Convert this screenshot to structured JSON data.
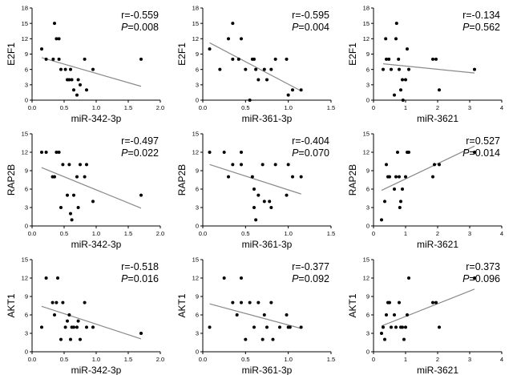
{
  "chart_data": [
    {
      "type": "scatter",
      "ylabel": "E2F1",
      "xlabel": "miR-342-3p",
      "xlim": [
        0,
        2.0
      ],
      "xticks": [
        "0.0",
        "0.5",
        "1.0",
        "1.5",
        "2.0"
      ],
      "xtick_values": [
        0,
        0.5,
        1,
        1.5,
        2
      ],
      "ylim": [
        0,
        18
      ],
      "yticks": [
        "0",
        "3",
        "6",
        "9",
        "12",
        "15",
        "18"
      ],
      "ytick_values": [
        0,
        3,
        6,
        9,
        12,
        15,
        18
      ],
      "r_text": "r=-0.559",
      "p_label": "P",
      "p_value": "=0.008",
      "points": [
        [
          0.15,
          10
        ],
        [
          0.22,
          8
        ],
        [
          0.33,
          8
        ],
        [
          0.35,
          15
        ],
        [
          0.38,
          12
        ],
        [
          0.42,
          12
        ],
        [
          0.42,
          8
        ],
        [
          0.45,
          6
        ],
        [
          0.52,
          6
        ],
        [
          0.55,
          4
        ],
        [
          0.58,
          4
        ],
        [
          0.6,
          6
        ],
        [
          0.62,
          4
        ],
        [
          0.65,
          2
        ],
        [
          0.7,
          1
        ],
        [
          0.72,
          4
        ],
        [
          0.75,
          3
        ],
        [
          0.82,
          8
        ],
        [
          0.85,
          2
        ],
        [
          0.95,
          6
        ],
        [
          1.7,
          8
        ]
      ],
      "fit": [
        [
          0.15,
          8.3
        ],
        [
          1.7,
          2.7
        ]
      ]
    },
    {
      "type": "scatter",
      "ylabel": "E2F1",
      "xlabel": "miR-361-3p",
      "xlim": [
        0,
        1.5
      ],
      "xticks": [
        "0.0",
        "0.5",
        "1.0",
        "1.5"
      ],
      "xtick_values": [
        0,
        0.5,
        1,
        1.5
      ],
      "ylim": [
        0,
        18
      ],
      "yticks": [
        "0",
        "3",
        "6",
        "9",
        "12",
        "15",
        "18"
      ],
      "ytick_values": [
        0,
        3,
        6,
        9,
        12,
        15,
        18
      ],
      "r_text": "r=-0.595",
      "p_label": "P",
      "p_value": "=0.004",
      "points": [
        [
          0.08,
          10
        ],
        [
          0.2,
          6
        ],
        [
          0.3,
          12
        ],
        [
          0.35,
          15
        ],
        [
          0.35,
          8
        ],
        [
          0.42,
          8
        ],
        [
          0.45,
          12
        ],
        [
          0.5,
          6
        ],
        [
          0.55,
          0
        ],
        [
          0.58,
          8
        ],
        [
          0.6,
          8
        ],
        [
          0.62,
          6
        ],
        [
          0.65,
          4
        ],
        [
          0.72,
          6
        ],
        [
          0.75,
          4
        ],
        [
          0.8,
          6
        ],
        [
          0.85,
          8
        ],
        [
          0.98,
          8
        ],
        [
          1.0,
          1
        ],
        [
          1.05,
          2
        ],
        [
          1.15,
          2
        ]
      ],
      "fit": [
        [
          0.08,
          11.2
        ],
        [
          1.15,
          1.8
        ]
      ]
    },
    {
      "type": "scatter",
      "ylabel": "E2F1",
      "xlabel": "miR-3621",
      "xlim": [
        0,
        4
      ],
      "xticks": [
        "0",
        "1",
        "2",
        "3",
        "4"
      ],
      "xtick_values": [
        0,
        1,
        2,
        3,
        4
      ],
      "ylim": [
        0,
        18
      ],
      "yticks": [
        "0",
        "3",
        "6",
        "9",
        "12",
        "15",
        "18"
      ],
      "ytick_values": [
        0,
        3,
        6,
        9,
        12,
        15,
        18
      ],
      "r_text": "r=-0.134",
      "p_label": "P",
      "p_value": "=0.562",
      "points": [
        [
          0.3,
          6
        ],
        [
          0.38,
          12
        ],
        [
          0.4,
          8
        ],
        [
          0.48,
          8
        ],
        [
          0.55,
          6
        ],
        [
          0.65,
          1
        ],
        [
          0.7,
          12
        ],
        [
          0.72,
          15
        ],
        [
          0.78,
          8
        ],
        [
          0.8,
          6
        ],
        [
          0.85,
          2
        ],
        [
          0.9,
          4
        ],
        [
          0.92,
          0
        ],
        [
          1.0,
          4
        ],
        [
          1.05,
          10
        ],
        [
          1.1,
          6
        ],
        [
          1.85,
          8
        ],
        [
          1.95,
          8
        ],
        [
          2.05,
          2
        ],
        [
          3.15,
          6
        ]
      ],
      "fit": [
        [
          0.3,
          7.1
        ],
        [
          3.15,
          5.3
        ]
      ]
    },
    {
      "type": "scatter",
      "ylabel": "RAP2B",
      "xlabel": "miR-342-3p",
      "xlim": [
        0,
        2.0
      ],
      "xticks": [
        "0.0",
        "0.5",
        "1.0",
        "1.5",
        "2.0"
      ],
      "xtick_values": [
        0,
        0.5,
        1,
        1.5,
        2
      ],
      "ylim": [
        0,
        15
      ],
      "yticks": [
        "0",
        "3",
        "6",
        "9",
        "12",
        "15"
      ],
      "ytick_values": [
        0,
        3,
        6,
        9,
        12,
        15
      ],
      "r_text": "r=-0.497",
      "p_label": "P",
      "p_value": "=0.022",
      "points": [
        [
          0.15,
          12
        ],
        [
          0.22,
          12
        ],
        [
          0.32,
          8
        ],
        [
          0.35,
          8
        ],
        [
          0.38,
          12
        ],
        [
          0.42,
          12
        ],
        [
          0.45,
          3
        ],
        [
          0.48,
          10
        ],
        [
          0.55,
          5
        ],
        [
          0.58,
          10
        ],
        [
          0.6,
          2
        ],
        [
          0.62,
          1
        ],
        [
          0.65,
          5
        ],
        [
          0.7,
          8
        ],
        [
          0.72,
          3
        ],
        [
          0.75,
          10
        ],
        [
          0.82,
          8
        ],
        [
          0.85,
          10
        ],
        [
          0.95,
          4
        ],
        [
          1.7,
          5
        ]
      ],
      "fit": [
        [
          0.15,
          9.5
        ],
        [
          1.7,
          2.9
        ]
      ]
    },
    {
      "type": "scatter",
      "ylabel": "RAP2B",
      "xlabel": "miR-361-3p",
      "xlim": [
        0,
        1.5
      ],
      "xticks": [
        "0.0",
        "0.5",
        "1.0",
        "1.5"
      ],
      "xtick_values": [
        0,
        0.5,
        1,
        1.5
      ],
      "ylim": [
        0,
        15
      ],
      "yticks": [
        "0",
        "3",
        "6",
        "9",
        "12",
        "15"
      ],
      "ytick_values": [
        0,
        3,
        6,
        9,
        12,
        15
      ],
      "r_text": "r=-0.404",
      "p_label": "P",
      "p_value": "=0.070",
      "points": [
        [
          0.08,
          12
        ],
        [
          0.25,
          12
        ],
        [
          0.3,
          8
        ],
        [
          0.35,
          10
        ],
        [
          0.45,
          10
        ],
        [
          0.45,
          12
        ],
        [
          0.58,
          8
        ],
        [
          0.6,
          6
        ],
        [
          0.6,
          3
        ],
        [
          0.62,
          1
        ],
        [
          0.65,
          5
        ],
        [
          0.7,
          10
        ],
        [
          0.72,
          4
        ],
        [
          0.78,
          4
        ],
        [
          0.8,
          3
        ],
        [
          0.85,
          10
        ],
        [
          0.98,
          5
        ],
        [
          1.0,
          10
        ],
        [
          1.05,
          8
        ],
        [
          1.15,
          8
        ]
      ],
      "fit": [
        [
          0.08,
          10.0
        ],
        [
          1.15,
          5.2
        ]
      ]
    },
    {
      "type": "scatter",
      "ylabel": "RAP2B",
      "xlabel": "miR-3621",
      "xlim": [
        0,
        4
      ],
      "xticks": [
        "0",
        "1",
        "2",
        "3",
        "4"
      ],
      "xtick_values": [
        0,
        1,
        2,
        3,
        4
      ],
      "ylim": [
        0,
        15
      ],
      "yticks": [
        "0",
        "3",
        "6",
        "9",
        "12",
        "15"
      ],
      "ytick_values": [
        0,
        3,
        6,
        9,
        12,
        15
      ],
      "r_text": "r=0.527",
      "p_label": "P",
      "p_value": "=0.014",
      "points": [
        [
          0.25,
          1
        ],
        [
          0.35,
          4
        ],
        [
          0.4,
          10
        ],
        [
          0.45,
          8
        ],
        [
          0.5,
          8
        ],
        [
          0.65,
          6
        ],
        [
          0.7,
          8
        ],
        [
          0.75,
          12
        ],
        [
          0.8,
          8
        ],
        [
          0.82,
          3
        ],
        [
          0.85,
          4
        ],
        [
          0.9,
          6
        ],
        [
          1.0,
          8
        ],
        [
          1.05,
          12
        ],
        [
          1.1,
          12
        ],
        [
          1.85,
          8
        ],
        [
          1.9,
          10
        ],
        [
          2.05,
          10
        ],
        [
          3.15,
          12
        ]
      ],
      "fit": [
        [
          0.25,
          5.8
        ],
        [
          3.15,
          13.0
        ]
      ]
    },
    {
      "type": "scatter",
      "ylabel": "AKT1",
      "xlabel": "miR-342-3p",
      "xlim": [
        0,
        2.0
      ],
      "xticks": [
        "0.0",
        "0.5",
        "1.0",
        "1.5",
        "2.0"
      ],
      "xtick_values": [
        0,
        0.5,
        1,
        1.5,
        2
      ],
      "ylim": [
        0,
        15
      ],
      "yticks": [
        "0",
        "3",
        "6",
        "9",
        "12",
        "15"
      ],
      "ytick_values": [
        0,
        3,
        6,
        9,
        12,
        15
      ],
      "r_text": "r=-0.518",
      "p_label": "P",
      "p_value": "=0.016",
      "points": [
        [
          0.15,
          4
        ],
        [
          0.22,
          12
        ],
        [
          0.32,
          8
        ],
        [
          0.35,
          6
        ],
        [
          0.38,
          8
        ],
        [
          0.4,
          12
        ],
        [
          0.45,
          2
        ],
        [
          0.48,
          8
        ],
        [
          0.52,
          4
        ],
        [
          0.55,
          5
        ],
        [
          0.58,
          6
        ],
        [
          0.6,
          2
        ],
        [
          0.62,
          4
        ],
        [
          0.65,
          4
        ],
        [
          0.7,
          4
        ],
        [
          0.72,
          5
        ],
        [
          0.75,
          2
        ],
        [
          0.82,
          8
        ],
        [
          0.85,
          4
        ],
        [
          0.95,
          4
        ],
        [
          1.7,
          3
        ]
      ],
      "fit": [
        [
          0.15,
          7.4
        ],
        [
          1.7,
          2.1
        ]
      ]
    },
    {
      "type": "scatter",
      "ylabel": "AKT1",
      "xlabel": "miR-361-3p",
      "xlim": [
        0,
        1.5
      ],
      "xticks": [
        "0.0",
        "0.5",
        "1.0",
        "1.5"
      ],
      "xtick_values": [
        0,
        0.5,
        1,
        1.5
      ],
      "ylim": [
        0,
        15
      ],
      "yticks": [
        "0",
        "3",
        "6",
        "9",
        "12",
        "15"
      ],
      "ytick_values": [
        0,
        3,
        6,
        9,
        12,
        15
      ],
      "r_text": "r=-0.377",
      "p_label": "P",
      "p_value": "=0.092",
      "points": [
        [
          0.08,
          4
        ],
        [
          0.25,
          12
        ],
        [
          0.35,
          8
        ],
        [
          0.4,
          6
        ],
        [
          0.45,
          12
        ],
        [
          0.45,
          8
        ],
        [
          0.5,
          2
        ],
        [
          0.55,
          8
        ],
        [
          0.6,
          4
        ],
        [
          0.65,
          8
        ],
        [
          0.7,
          2
        ],
        [
          0.72,
          6
        ],
        [
          0.75,
          4
        ],
        [
          0.8,
          8
        ],
        [
          0.82,
          2
        ],
        [
          0.9,
          4
        ],
        [
          0.98,
          6
        ],
        [
          1.0,
          4
        ],
        [
          1.02,
          4
        ],
        [
          1.15,
          4
        ]
      ],
      "fit": [
        [
          0.08,
          7.8
        ],
        [
          1.15,
          3.8
        ]
      ]
    },
    {
      "type": "scatter",
      "ylabel": "AKT1",
      "xlabel": "miR-3621",
      "xlim": [
        0,
        4
      ],
      "xticks": [
        "0",
        "1",
        "2",
        "3",
        "4"
      ],
      "xtick_values": [
        0,
        1,
        2,
        3,
        4
      ],
      "ylim": [
        0,
        15
      ],
      "yticks": [
        "0",
        "3",
        "6",
        "9",
        "12",
        "15"
      ],
      "ytick_values": [
        0,
        3,
        6,
        9,
        12,
        15
      ],
      "r_text": "r=0.373",
      "p_label": "P",
      "p_value": "=0.096",
      "points": [
        [
          0.25,
          3
        ],
        [
          0.3,
          4
        ],
        [
          0.35,
          2
        ],
        [
          0.4,
          6
        ],
        [
          0.45,
          8
        ],
        [
          0.5,
          8
        ],
        [
          0.55,
          4
        ],
        [
          0.65,
          6
        ],
        [
          0.7,
          4
        ],
        [
          0.8,
          8
        ],
        [
          0.85,
          4
        ],
        [
          0.9,
          4
        ],
        [
          0.95,
          2
        ],
        [
          1.0,
          4
        ],
        [
          1.05,
          6
        ],
        [
          1.1,
          12
        ],
        [
          1.85,
          8
        ],
        [
          1.95,
          8
        ],
        [
          2.05,
          4
        ],
        [
          3.15,
          12
        ]
      ],
      "fit": [
        [
          0.25,
          4.2
        ],
        [
          3.15,
          10.2
        ]
      ]
    }
  ]
}
